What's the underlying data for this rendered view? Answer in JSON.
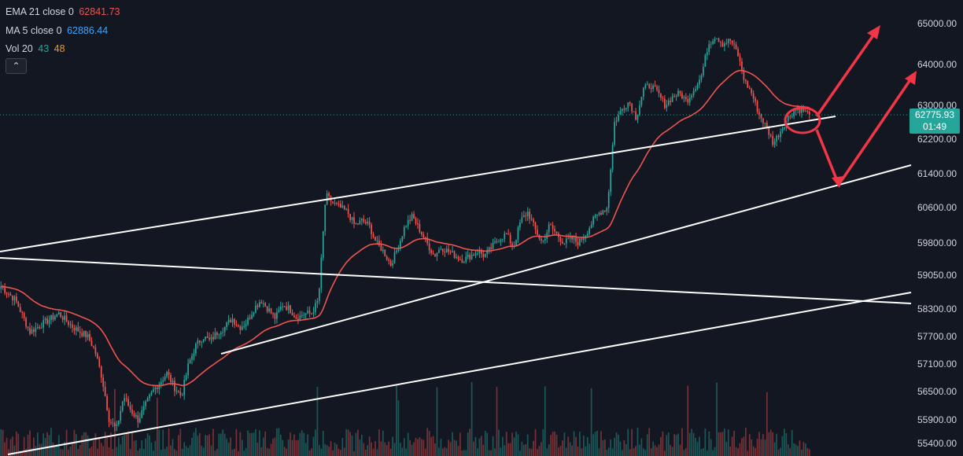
{
  "legend": {
    "ema": {
      "label": "EMA 21 close 0",
      "value": "62841.73",
      "color": "#ef5350"
    },
    "ma": {
      "label": "MA 5 close 0",
      "value": "62886.44",
      "color": "#42a5f5"
    },
    "vol": {
      "label": "Vol 20",
      "value1": "43",
      "value2": "48",
      "color1": "#26a69a",
      "color2": "#ff9800"
    },
    "collapse_icon": "chevron-up-icon",
    "collapse_glyph": "⌃"
  },
  "last_price": {
    "value": "62775.93",
    "countdown": "01:49",
    "color": "#26a69a"
  },
  "colors": {
    "background": "#131722",
    "up": "#26a69a",
    "down": "#ef5350",
    "ema_line": "#ef5350",
    "trendline": "#ffffff",
    "annotation": "#f23645",
    "axis_text": "#d1d4dc"
  },
  "chart_data": {
    "type": "candlestick",
    "y_axis": {
      "side": "right",
      "tick_labels": [
        "65000.00",
        "64000.00",
        "63000.00",
        "62200.00",
        "61400.00",
        "60600.00",
        "59800.00",
        "59050.00",
        "58300.00",
        "57700.00",
        "57100.00",
        "56500.00",
        "55900.00",
        "55400.00"
      ],
      "range": [
        55150,
        65300
      ]
    },
    "x_axis": {
      "labels": []
    },
    "grid": false,
    "price_path": [
      [
        0,
        58800
      ],
      [
        2,
        58500
      ],
      [
        4,
        57800
      ],
      [
        6,
        58000
      ],
      [
        8,
        58200
      ],
      [
        10,
        57900
      ],
      [
        12,
        57700
      ],
      [
        13,
        57400
      ],
      [
        14,
        56800
      ],
      [
        15,
        55900
      ],
      [
        16,
        55700
      ],
      [
        17,
        56400
      ],
      [
        18,
        56100
      ],
      [
        19,
        55900
      ],
      [
        20,
        56200
      ],
      [
        21,
        56500
      ],
      [
        22,
        56700
      ],
      [
        23,
        56900
      ],
      [
        24,
        56600
      ],
      [
        25,
        56400
      ],
      [
        26,
        57100
      ],
      [
        27,
        57500
      ],
      [
        28,
        57700
      ],
      [
        29,
        57600
      ],
      [
        30,
        57800
      ],
      [
        31,
        57900
      ],
      [
        32,
        58100
      ],
      [
        33,
        57900
      ],
      [
        34,
        58000
      ],
      [
        35,
        58300
      ],
      [
        36,
        58500
      ],
      [
        37,
        58300
      ],
      [
        38,
        58100
      ],
      [
        39,
        58400
      ],
      [
        40,
        58300
      ],
      [
        41,
        58100
      ],
      [
        42,
        58200
      ],
      [
        43,
        58200
      ],
      [
        44,
        58500
      ],
      [
        45,
        60900
      ],
      [
        46,
        60700
      ],
      [
        47,
        60600
      ],
      [
        48,
        60500
      ],
      [
        49,
        60200
      ],
      [
        50,
        60300
      ],
      [
        51,
        60200
      ],
      [
        52,
        59800
      ],
      [
        53,
        59600
      ],
      [
        54,
        59300
      ],
      [
        55,
        59700
      ],
      [
        56,
        60200
      ],
      [
        57,
        60400
      ],
      [
        58,
        60100
      ],
      [
        59,
        59800
      ],
      [
        60,
        59500
      ],
      [
        61,
        59700
      ],
      [
        62,
        59600
      ],
      [
        63,
        59500
      ],
      [
        64,
        59400
      ],
      [
        65,
        59500
      ],
      [
        66,
        59600
      ],
      [
        67,
        59500
      ],
      [
        68,
        59700
      ],
      [
        69,
        59900
      ],
      [
        70,
        60000
      ],
      [
        71,
        59700
      ],
      [
        72,
        60300
      ],
      [
        73,
        60500
      ],
      [
        74,
        60100
      ],
      [
        75,
        59800
      ],
      [
        76,
        60200
      ],
      [
        77,
        60000
      ],
      [
        78,
        59800
      ],
      [
        79,
        59900
      ],
      [
        80,
        59800
      ],
      [
        81,
        60000
      ],
      [
        82,
        60300
      ],
      [
        83,
        60500
      ],
      [
        84,
        60600
      ],
      [
        85,
        62600
      ],
      [
        86,
        62900
      ],
      [
        87,
        63100
      ],
      [
        88,
        62700
      ],
      [
        89,
        63400
      ],
      [
        90,
        63500
      ],
      [
        91,
        63300
      ],
      [
        92,
        63000
      ],
      [
        93,
        63200
      ],
      [
        94,
        63300
      ],
      [
        95,
        63100
      ],
      [
        96,
        63400
      ],
      [
        97,
        63700
      ],
      [
        98,
        64500
      ],
      [
        99,
        64700
      ],
      [
        100,
        64500
      ],
      [
        101,
        64600
      ],
      [
        102,
        64300
      ],
      [
        103,
        63600
      ],
      [
        104,
        63300
      ],
      [
        105,
        62800
      ],
      [
        106,
        62500
      ],
      [
        107,
        62100
      ],
      [
        108,
        62400
      ],
      [
        109,
        62700
      ],
      [
        110,
        62900
      ],
      [
        111,
        62900
      ],
      [
        112,
        62776
      ]
    ],
    "ema_period": 21
  }
}
